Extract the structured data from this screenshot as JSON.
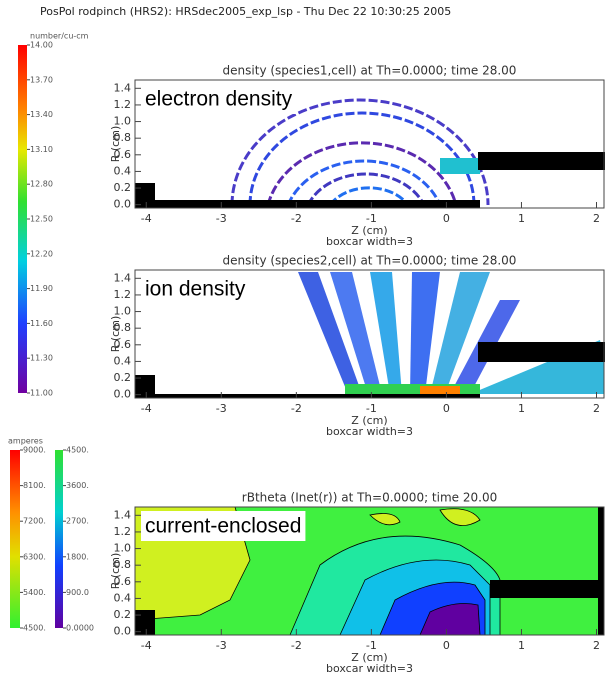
{
  "header": {
    "title": "PosPol rodpinch (HRS2): HRSdec2005_exp_lsp - Thu Dec 22 10:30:25 2005"
  },
  "colorbars": [
    {
      "label": "number/cu-cm",
      "lim": [
        11,
        14
      ],
      "ticks": [
        {
          "value": 14,
          "label": "14.00"
        },
        {
          "value": 13.7,
          "label": "13.70"
        },
        {
          "value": 13.4,
          "label": "13.40"
        },
        {
          "value": 13.1,
          "label": "13.10"
        },
        {
          "value": 12.8,
          "label": "12.80"
        },
        {
          "value": 12.5,
          "label": "12.50"
        },
        {
          "value": 12.2,
          "label": "12.20"
        },
        {
          "value": 11.9,
          "label": "11.90"
        },
        {
          "value": 11.6,
          "label": "11.60"
        },
        {
          "value": 11.3,
          "label": "11.30"
        },
        {
          "value": 11,
          "label": "11.00"
        }
      ]
    },
    {
      "label": "amperes",
      "lim": [
        4500,
        9000
      ],
      "ticks": [
        {
          "value": 9000,
          "label": "9000."
        },
        {
          "value": 8100,
          "label": "8100."
        },
        {
          "value": 7200,
          "label": "7200."
        },
        {
          "value": 6300,
          "label": "6300."
        },
        {
          "value": 5400,
          "label": "5400."
        },
        {
          "value": 4500,
          "label": "4500."
        }
      ]
    },
    {
      "lim": [
        0,
        4500
      ],
      "ticks": [
        {
          "value": 4500,
          "label": "4500."
        },
        {
          "value": 3600,
          "label": "3600."
        },
        {
          "value": 2700,
          "label": "2700."
        },
        {
          "value": 1800,
          "label": "1800."
        },
        {
          "value": 900,
          "label": "900.0"
        },
        {
          "value": 0,
          "label": "0.0000"
        }
      ]
    }
  ],
  "chart_data": [
    {
      "type": "heatmap",
      "title": "density (species1,cell) at Th=0.0000; time 28.00",
      "annotation": "electron density",
      "xlabel": "Z (cm)",
      "ylabel": "R (cm)",
      "note": "boxcar width=3",
      "xlim": [
        -4.15,
        2.1
      ],
      "ylim": [
        -0.04,
        1.5
      ],
      "xticks": [
        -4,
        -3,
        -2,
        -1,
        0,
        1,
        2
      ],
      "yticks": [
        {
          "value": 0,
          "label": "0.0"
        },
        {
          "value": 0.2,
          "label": "0.2"
        },
        {
          "value": 0.4,
          "label": "0.4"
        },
        {
          "value": 0.6,
          "label": "0.6"
        },
        {
          "value": 0.8,
          "label": "0.8"
        },
        {
          "value": 1,
          "label": "1.0"
        },
        {
          "value": 1.2,
          "label": "1.2"
        },
        {
          "value": 1.4,
          "label": "1.4"
        }
      ]
    },
    {
      "type": "heatmap",
      "title": "density (species2,cell) at Th=0.0000; time 28.00",
      "annotation": "ion density",
      "xlabel": "Z (cm)",
      "ylabel": "R (cm)",
      "note": "boxcar width=3",
      "xlim": [
        -4.15,
        2.1
      ],
      "ylim": [
        -0.04,
        1.5
      ],
      "xticks": [
        -4,
        -3,
        -2,
        -1,
        0,
        1,
        2
      ],
      "yticks": [
        {
          "value": 0,
          "label": "0.0"
        },
        {
          "value": 0.2,
          "label": "0.2"
        },
        {
          "value": 0.4,
          "label": "0.4"
        },
        {
          "value": 0.6,
          "label": "0.6"
        },
        {
          "value": 0.8,
          "label": "0.8"
        },
        {
          "value": 1,
          "label": "1.0"
        },
        {
          "value": 1.2,
          "label": "1.2"
        },
        {
          "value": 1.4,
          "label": "1.4"
        }
      ]
    },
    {
      "type": "contour",
      "title": "rBtheta (Inet(r)) at Th=0.0000; time 20.00",
      "annotation": "current-enclosed",
      "xlabel": "Z (cm)",
      "ylabel": "R (cm)",
      "note": "boxcar width=3",
      "xlim": [
        -4.15,
        2.1
      ],
      "ylim": [
        -0.04,
        1.5
      ],
      "xticks": [
        -4,
        -3,
        -2,
        -1,
        0,
        1,
        2
      ],
      "yticks": [
        {
          "value": 0,
          "label": "0.0"
        },
        {
          "value": 0.2,
          "label": "0.2"
        },
        {
          "value": 0.4,
          "label": "0.4"
        },
        {
          "value": 0.6,
          "label": "0.6"
        },
        {
          "value": 0.8,
          "label": "0.8"
        },
        {
          "value": 1,
          "label": "1.0"
        },
        {
          "value": 1.2,
          "label": "1.2"
        },
        {
          "value": 1.4,
          "label": "1.4"
        }
      ]
    }
  ]
}
